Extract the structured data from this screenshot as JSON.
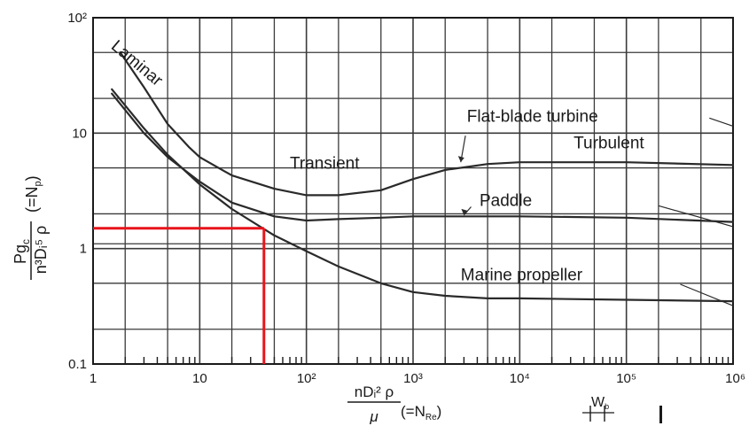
{
  "chart_data": {
    "type": "line",
    "title": "",
    "x_scale": "log",
    "y_scale": "log",
    "xlim": [
      1,
      1000000
    ],
    "ylim": [
      0.1,
      100
    ],
    "grid": true,
    "xlabel": {
      "num": "nDᵢ² ρ",
      "den": "μ",
      "suffix": "(=N",
      "sub": "Re",
      "close": ")"
    },
    "ylabel": {
      "num": "Pg",
      "num_sub": "c",
      "den": "n³Dᵢ⁵ ρ",
      "suffix": "(=N",
      "sub": "p",
      "close": ")"
    },
    "x_ticks": [
      {
        "value": 1,
        "label": "1"
      },
      {
        "value": 10,
        "label": "10"
      },
      {
        "value": 100,
        "label": "10²"
      },
      {
        "value": 1000,
        "label": "10³"
      },
      {
        "value": 10000,
        "label": "10⁴"
      },
      {
        "value": 100000,
        "label": "10⁵"
      },
      {
        "value": 1000000,
        "label": "10⁶"
      }
    ],
    "y_ticks": [
      {
        "value": 0.1,
        "label": "0.1"
      },
      {
        "value": 1,
        "label": "1"
      },
      {
        "value": 10,
        "label": "10"
      },
      {
        "value": 100,
        "label": "10²"
      }
    ],
    "series": [
      {
        "name": "Flat-blade turbine",
        "x": [
          1.8,
          3,
          5,
          8,
          10,
          20,
          50,
          100,
          200,
          500,
          1000,
          2000,
          5000,
          10000,
          100000,
          1000000
        ],
        "y": [
          50,
          25,
          12,
          7.5,
          6.2,
          4.3,
          3.3,
          2.9,
          2.9,
          3.2,
          4.0,
          4.8,
          5.4,
          5.6,
          5.6,
          5.3
        ]
      },
      {
        "name": "Paddle",
        "x": [
          1.5,
          3,
          5,
          10,
          20,
          50,
          100,
          200,
          500,
          1000,
          10000,
          100000,
          1000000
        ],
        "y": [
          22,
          10,
          6.2,
          3.8,
          2.5,
          1.9,
          1.75,
          1.8,
          1.85,
          1.9,
          1.9,
          1.85,
          1.7
        ]
      },
      {
        "name": "Marine propeller",
        "x": [
          1.5,
          3,
          5,
          10,
          20,
          50,
          100,
          200,
          500,
          1000,
          2000,
          5000,
          10000,
          100000,
          1000000
        ],
        "y": [
          24,
          11,
          6.5,
          3.6,
          2.2,
          1.3,
          0.95,
          0.7,
          0.5,
          0.42,
          0.39,
          0.37,
          0.37,
          0.36,
          0.35
        ]
      }
    ],
    "h_refs": [
      {
        "y": 0.5,
        "x": [
          1,
          1000000
        ]
      },
      {
        "y": 1.1,
        "x": [
          1,
          1000000
        ]
      }
    ],
    "annotations": [
      {
        "text": "Laminar",
        "x": 1.45,
        "y": 55,
        "angle": 40
      },
      {
        "text": "Transient",
        "x": 70,
        "y": 4.9,
        "angle": 0
      },
      {
        "text": "Flat-blade turbine",
        "x": 3200,
        "y": 12.5,
        "angle": 0
      },
      {
        "text": "Turbulent",
        "x": 32000,
        "y": 7.4,
        "angle": 0
      },
      {
        "text": "Paddle",
        "x": 4200,
        "y": 2.35,
        "angle": 0
      },
      {
        "text": "Marine propeller",
        "x": 2800,
        "y": 0.53,
        "angle": 0
      }
    ],
    "leaders": [
      {
        "x": [
          600000,
          1000000
        ],
        "y": [
          13.5,
          11.5
        ]
      },
      {
        "x": [
          2800,
          3100
        ],
        "y": [
          5.6,
          9.5
        ]
      },
      {
        "x": [
          3000,
          3500
        ],
        "y": [
          1.95,
          2.3
        ]
      },
      {
        "x": [
          200000,
          1000000
        ],
        "y": [
          2.35,
          1.55
        ]
      },
      {
        "x": [
          320000,
          1000000
        ],
        "y": [
          0.49,
          0.32
        ]
      }
    ],
    "highlight": {
      "color": "#e8141c",
      "x": 40,
      "y": 1.5
    },
    "colors": {
      "curve": "#2a2a2a",
      "grid": "#3a3a3a",
      "highlight": "#e8141c"
    }
  }
}
